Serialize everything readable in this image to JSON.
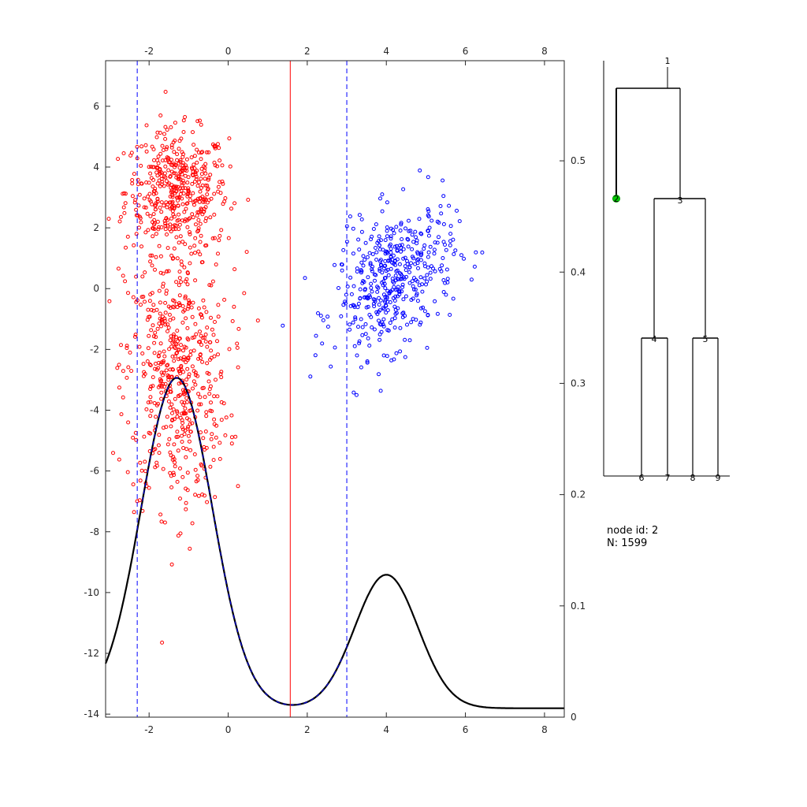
{
  "chart_data": [
    {
      "type": "scatter",
      "xlim": [
        -3.1,
        8.5
      ],
      "ylim": [
        -14.1,
        7.5
      ],
      "x_ticks": [
        -2,
        0,
        2,
        4,
        6,
        8
      ],
      "y_ticks": [
        6,
        4,
        2,
        0,
        -2,
        -4,
        -6,
        -8,
        -10,
        -12,
        -14
      ],
      "series": [
        {
          "color": "#ff0000",
          "marker": "circle-open",
          "clusters": [
            {
              "cx": -1.3,
              "cy": 3.2,
              "sx": 0.65,
              "sy": 1.0,
              "n": 450
            },
            {
              "cx": -1.3,
              "cy": -2.8,
              "sx": 0.65,
              "sy": 2.2,
              "n": 550
            }
          ]
        },
        {
          "color": "#0000ff",
          "marker": "circle-open",
          "clusters": [
            {
              "cx": 4.2,
              "cy": 0.3,
              "sx": 0.75,
              "sy": 1.1,
              "n": 450
            }
          ]
        }
      ],
      "vertical_lines": [
        {
          "x": 1.57,
          "color": "#ff0000",
          "style": "solid"
        },
        {
          "x": -2.3,
          "color": "#0000ff",
          "style": "dashed"
        },
        {
          "x": 3.0,
          "color": "#0000ff",
          "style": "dashed"
        }
      ]
    },
    {
      "type": "line",
      "ylim": [
        0,
        0.59
      ],
      "y_ticks": [
        0,
        0.1,
        0.2,
        0.3,
        0.4,
        0.5
      ],
      "density": {
        "components": [
          {
            "mu": -1.3,
            "sigma": 0.9,
            "peak": 0.297
          },
          {
            "mu": 4.0,
            "sigma": 0.8,
            "peak": 0.12
          }
        ],
        "color": "#000000"
      },
      "dashed_overlay": [
        {
          "from": -2.2,
          "to": 2.9,
          "color": "#0000ff"
        }
      ]
    },
    {
      "type": "diagram",
      "tree": {
        "nodes": [
          {
            "id": "1"
          },
          {
            "id": "2",
            "highlighted": true,
            "color": "#00cc00"
          },
          {
            "id": "3"
          },
          {
            "id": "4"
          },
          {
            "id": "5"
          },
          {
            "id": "6"
          },
          {
            "id": "7"
          },
          {
            "id": "8"
          },
          {
            "id": "9"
          }
        ],
        "edges": [
          [
            "1",
            "2"
          ],
          [
            "1",
            "3"
          ],
          [
            "3",
            "4"
          ],
          [
            "3",
            "5"
          ],
          [
            "4",
            "6"
          ],
          [
            "4",
            "7"
          ],
          [
            "5",
            "8"
          ],
          [
            "5",
            "9"
          ]
        ]
      }
    }
  ],
  "node_info": {
    "node_id_line": "node id: 2",
    "n_line": "N: 1599"
  }
}
